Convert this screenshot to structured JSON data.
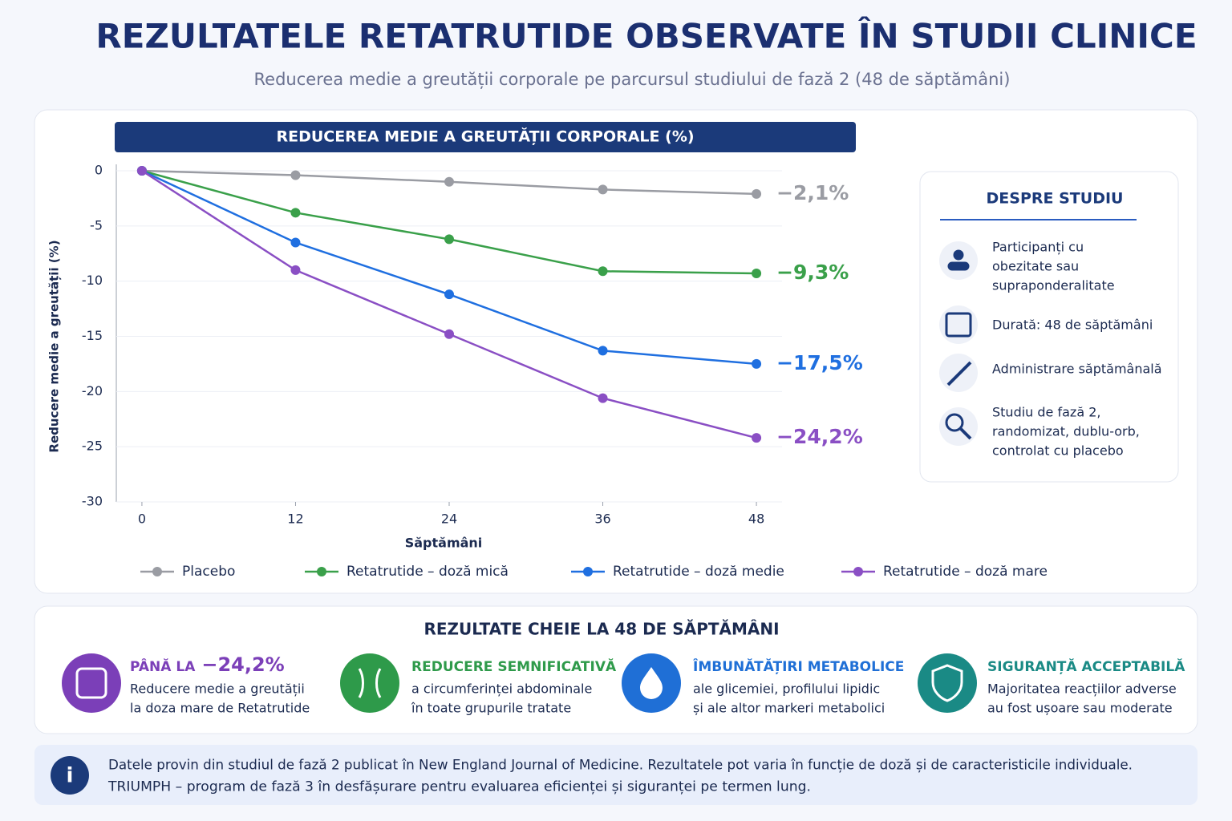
{
  "header": {
    "title": "REZULTATELE RETATRUTIDE OBSERVATE ÎN STUDII CLINICE",
    "subtitle": "Reducerea medie a greutății corporale pe parcursul studiului de fază 2 (48 de săptămâni)"
  },
  "chart_data": {
    "type": "line",
    "title": "REDUCEREA MEDIE A GREUTĂȚII CORPORALE (%)",
    "x_label": "Săptămâni",
    "y_label": "Reducere medie a greutății (%)",
    "x": [
      0,
      12,
      24,
      36,
      48
    ],
    "xlim": [
      -2,
      50
    ],
    "xticks": [
      0,
      12,
      24,
      36,
      48
    ],
    "ylim": [
      -30,
      0
    ],
    "yticks": [
      0,
      -5,
      -10,
      -15,
      -20,
      -25,
      -30
    ],
    "grid": true,
    "legend": "bottom",
    "series": [
      {
        "name": "Placebo",
        "color": "#9a9ca3",
        "values": [
          0,
          -0.4,
          -1.0,
          -1.7,
          -2.1
        ],
        "value_labels": [
          null,
          null,
          null,
          null,
          "−2,1%"
        ]
      },
      {
        "name": "Retatrutide – doză mică",
        "color": "#3aa04a",
        "values": [
          0,
          -3.8,
          -6.2,
          -9.1,
          -9.3
        ],
        "value_labels": [
          null,
          null,
          null,
          null,
          "−9,3%"
        ]
      },
      {
        "name": "Retatrutide – doză medie",
        "color": "#1f6fe0",
        "values": [
          0,
          -6.5,
          -11.2,
          -16.3,
          -17.5
        ],
        "value_labels": [
          null,
          null,
          null,
          null,
          "−17,5%"
        ]
      },
      {
        "name": "Retatrutide – doză mare",
        "color": "#8a4fc4",
        "values": [
          0,
          -9.0,
          -14.8,
          -20.6,
          -24.2
        ],
        "value_labels": [
          null,
          null,
          null,
          null,
          "−24,2%"
        ]
      }
    ]
  },
  "about": {
    "title": "DESPRE STUDIU",
    "items": [
      {
        "lines": [
          "Participanți cu",
          "obezitate sau",
          "supraponderalitate"
        ]
      },
      {
        "lines": [
          "Durată: 48 de săptămâni"
        ]
      },
      {
        "lines": [
          "Administrare săptămânală"
        ]
      },
      {
        "lines": [
          "Studiu de fază 2,",
          "randomizat, dublu-orb,",
          "controlat cu placebo"
        ]
      }
    ]
  },
  "key_results": {
    "title": "REZULTATE CHEIE LA 48 DE SĂPTĂMÂNI",
    "items": [
      {
        "title": "PÂNĂ LA",
        "highlight": "−24,2%",
        "lines": [
          "Reducere medie a greutății",
          "la doza mare de Retatrutide"
        ]
      },
      {
        "title": "REDUCERE SEMNIFICATIVĂ",
        "lines": [
          "a circumferinței abdominale",
          "în toate grupurile tratate"
        ]
      },
      {
        "title": "ÎMBUNĂTĂȚIRI METABOLICE",
        "lines": [
          "ale glicemiei, profilului lipidic",
          "și ale altor markeri metabolici"
        ]
      },
      {
        "title": "SIGURANȚĂ ACCEPTABILĂ",
        "lines": [
          "Majoritatea reacțiilor adverse",
          "au fost ușoare sau moderate"
        ]
      }
    ]
  },
  "footer": {
    "lines": [
      "Datele provin din studiul de fază 2 publicat în New England Journal of Medicine. Rezultatele pot varia în funcție de doză și de caracteristicile individuale.",
      "TRIUMPH – program de fază 3 în desfășurare pentru evaluarea eficienței și siguranței pe termen lung."
    ]
  }
}
